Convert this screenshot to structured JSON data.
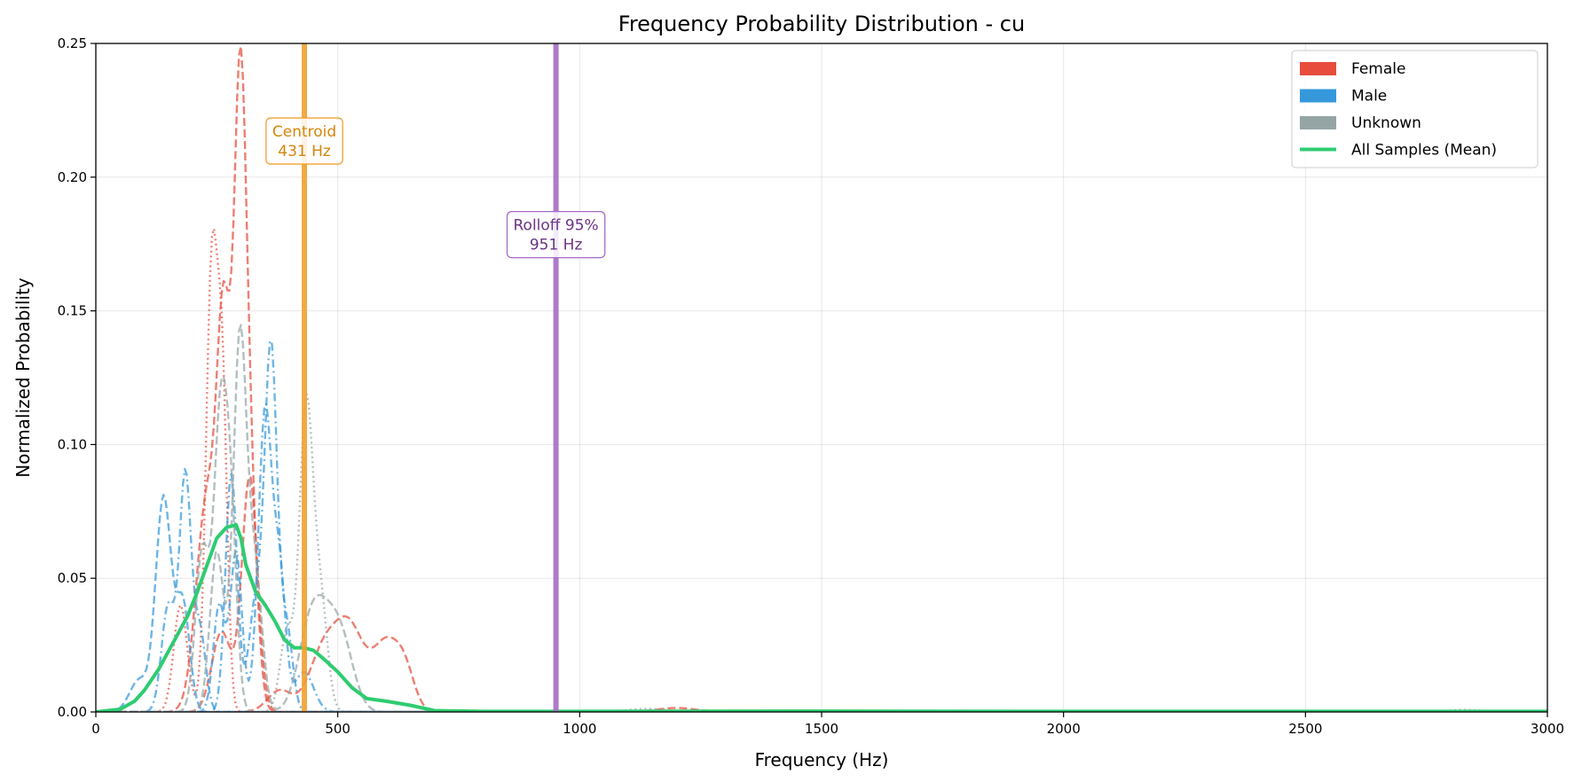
{
  "chart_data": {
    "type": "line",
    "title": "Frequency Probability Distribution - cu",
    "xlabel": "Frequency (Hz)",
    "ylabel": "Normalized Probability",
    "xlim": [
      0,
      3000
    ],
    "ylim": [
      0,
      0.25
    ],
    "xticks": [
      0,
      500,
      1000,
      1500,
      2000,
      2500,
      3000
    ],
    "yticks": [
      0.0,
      0.05,
      0.1,
      0.15,
      0.2,
      0.25
    ],
    "xtick_labels": [
      "0",
      "500",
      "1000",
      "1500",
      "2000",
      "2500",
      "3000"
    ],
    "ytick_labels": [
      "0.00",
      "0.05",
      "0.10",
      "0.15",
      "0.20",
      "0.25"
    ],
    "grid": true,
    "legend_position": "top-right",
    "legend": [
      {
        "label": "Female",
        "kind": "patch",
        "color": "#e74c3c"
      },
      {
        "label": "Male",
        "kind": "patch",
        "color": "#3498db"
      },
      {
        "label": "Unknown",
        "kind": "patch",
        "color": "#95a5a6"
      },
      {
        "label": "All Samples (Mean)",
        "kind": "line",
        "color": "#2ecc71"
      }
    ],
    "vlines": [
      {
        "x": 431,
        "color": "#f0a030",
        "label_lines": [
          "Centroid",
          "431 Hz"
        ],
        "label_y": 0.2135,
        "text_color": "#d4860b"
      },
      {
        "x": 951,
        "color": "#a66bc7",
        "label_lines": [
          "Rolloff 95%",
          "951 Hz"
        ],
        "label_y": 0.1785,
        "text_color": "#6c3483"
      }
    ],
    "series": [
      {
        "group": "Female",
        "color": "#e74c3c",
        "style": "dashed",
        "peaks": [
          [
            230,
            0.08,
            22
          ],
          [
            265,
            0.13,
            14
          ],
          [
            298,
            0.22,
            13
          ],
          [
            320,
            0.07,
            14
          ]
        ]
      },
      {
        "group": "Female",
        "color": "#e74c3c",
        "style": "dotted",
        "peaks": [
          [
            175,
            0.04,
            14
          ],
          [
            240,
            0.168,
            12
          ],
          [
            262,
            0.11,
            10
          ]
        ]
      },
      {
        "group": "Female",
        "color": "#e74c3c",
        "style": "dashed",
        "peaks": [
          [
            260,
            0.03,
            20
          ],
          [
            318,
            0.088,
            16
          ]
        ]
      },
      {
        "group": "Female",
        "color": "#e74c3c",
        "style": "dashed",
        "peaks": [
          [
            380,
            0.008,
            25
          ],
          [
            470,
            0.022,
            30
          ],
          [
            525,
            0.03,
            30
          ],
          [
            600,
            0.025,
            28
          ],
          [
            640,
            0.012,
            20
          ],
          [
            1200,
            0.0015,
            40
          ]
        ]
      },
      {
        "group": "Male",
        "color": "#3498db",
        "style": "dashed",
        "peaks": [
          [
            90,
            0.012,
            20
          ],
          [
            140,
            0.08,
            16
          ],
          [
            180,
            0.04,
            14
          ]
        ]
      },
      {
        "group": "Male",
        "color": "#3498db",
        "style": "dashdot",
        "peaks": [
          [
            150,
            0.04,
            14
          ],
          [
            185,
            0.088,
            12
          ],
          [
            215,
            0.03,
            12
          ]
        ]
      },
      {
        "group": "Male",
        "color": "#3498db",
        "style": "dashdot",
        "peaks": [
          [
            280,
            0.089,
            12
          ],
          [
            330,
            0.04,
            14
          ],
          [
            362,
            0.136,
            13
          ],
          [
            395,
            0.03,
            12
          ]
        ]
      },
      {
        "group": "Male",
        "color": "#3498db",
        "style": "dashdot",
        "peaks": [
          [
            255,
            0.04,
            12
          ],
          [
            290,
            0.06,
            12
          ],
          [
            350,
            0.113,
            14
          ],
          [
            380,
            0.05,
            12
          ],
          [
            430,
            0.015,
            20
          ]
        ]
      },
      {
        "group": "Unknown",
        "color": "#95a5a6",
        "style": "dashed",
        "peaks": [
          [
            220,
            0.06,
            14
          ],
          [
            258,
            0.11,
            14
          ],
          [
            280,
            0.06,
            12
          ]
        ]
      },
      {
        "group": "Unknown",
        "color": "#95a5a6",
        "style": "dashed",
        "peaks": [
          [
            250,
            0.06,
            14
          ],
          [
            298,
            0.141,
            14
          ],
          [
            330,
            0.05,
            14
          ],
          [
            440,
            0.02,
            25
          ],
          [
            470,
            0.028,
            30
          ],
          [
            510,
            0.02,
            25
          ]
        ]
      },
      {
        "group": "Unknown",
        "color": "#95a5a6",
        "style": "dotted",
        "peaks": [
          [
            395,
            0.03,
            14
          ],
          [
            435,
            0.114,
            14
          ],
          [
            465,
            0.04,
            14
          ],
          [
            1140,
            0.0012,
            40
          ],
          [
            2830,
            0.0008,
            30
          ]
        ]
      }
    ],
    "mean_series": {
      "name": "All Samples (Mean)",
      "color": "#2ecc71",
      "x": [
        0,
        50,
        80,
        100,
        130,
        160,
        190,
        210,
        230,
        250,
        270,
        290,
        300,
        310,
        330,
        350,
        370,
        390,
        410,
        430,
        450,
        470,
        500,
        530,
        560,
        600,
        650,
        700,
        800,
        1000,
        1500,
        2000,
        2500,
        3000
      ],
      "y": [
        0,
        0.001,
        0.004,
        0.008,
        0.016,
        0.026,
        0.036,
        0.045,
        0.055,
        0.065,
        0.069,
        0.07,
        0.065,
        0.055,
        0.045,
        0.04,
        0.034,
        0.027,
        0.024,
        0.024,
        0.023,
        0.02,
        0.015,
        0.009,
        0.005,
        0.004,
        0.0025,
        0.0005,
        0.0002,
        0.0002,
        0.0003,
        0.0002,
        0.0002,
        0.0002
      ]
    }
  }
}
